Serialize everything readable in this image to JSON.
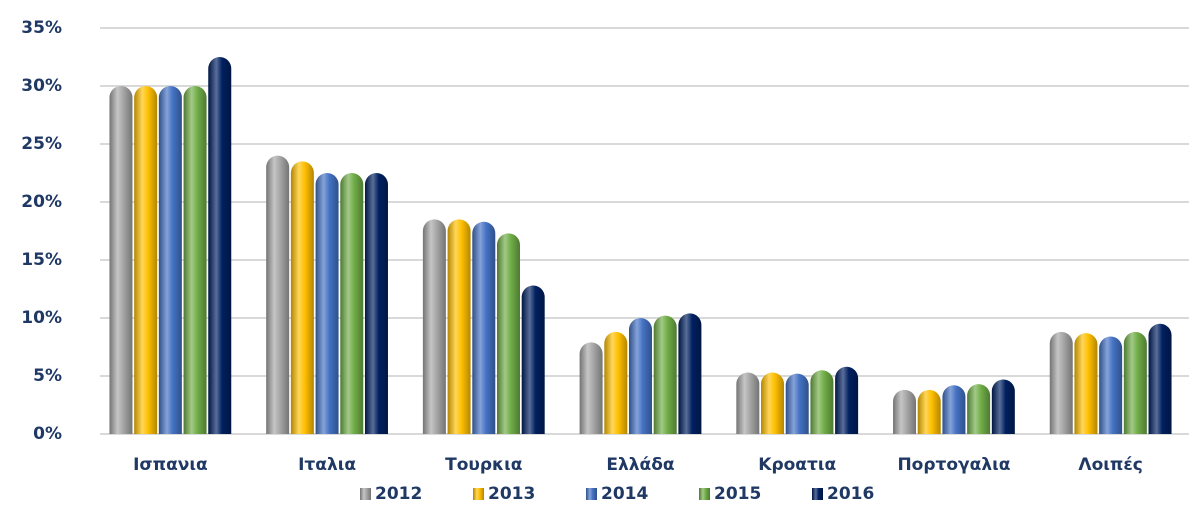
{
  "chart_data": {
    "type": "bar",
    "categories": [
      "Ισπανια",
      "Ιταλια",
      "Τουρκια",
      "Ελλάδα",
      "Κροατια",
      "Πορτογαλια",
      "Λοιπές"
    ],
    "series": [
      {
        "name": "2012",
        "color": "#a6a6a6",
        "values": [
          30,
          24,
          18.5,
          7.9,
          5.3,
          3.8,
          8.8
        ]
      },
      {
        "name": "2013",
        "color": "#ffc000",
        "values": [
          30,
          23.5,
          18.5,
          8.8,
          5.3,
          3.8,
          8.7
        ]
      },
      {
        "name": "2014",
        "color": "#4472c4",
        "values": [
          30,
          22.5,
          18.3,
          10,
          5.2,
          4.2,
          8.4
        ]
      },
      {
        "name": "2015",
        "color": "#70ad47",
        "values": [
          30,
          22.5,
          17.3,
          10.2,
          5.5,
          4.3,
          8.8
        ]
      },
      {
        "name": "2016",
        "color": "#002060",
        "values": [
          32.5,
          22.5,
          12.8,
          10.4,
          5.8,
          4.7,
          9.5
        ]
      }
    ],
    "ylim": [
      0,
      35
    ],
    "yticks": [
      {
        "value": 0,
        "label": "0%"
      },
      {
        "value": 5,
        "label": "5%"
      },
      {
        "value": 10,
        "label": "10%"
      },
      {
        "value": 15,
        "label": "15%"
      },
      {
        "value": 20,
        "label": "20%"
      },
      {
        "value": 25,
        "label": "25%"
      },
      {
        "value": 30,
        "label": "30%"
      },
      {
        "value": 35,
        "label": "35%"
      }
    ],
    "grid": true,
    "legend": "bottom"
  }
}
